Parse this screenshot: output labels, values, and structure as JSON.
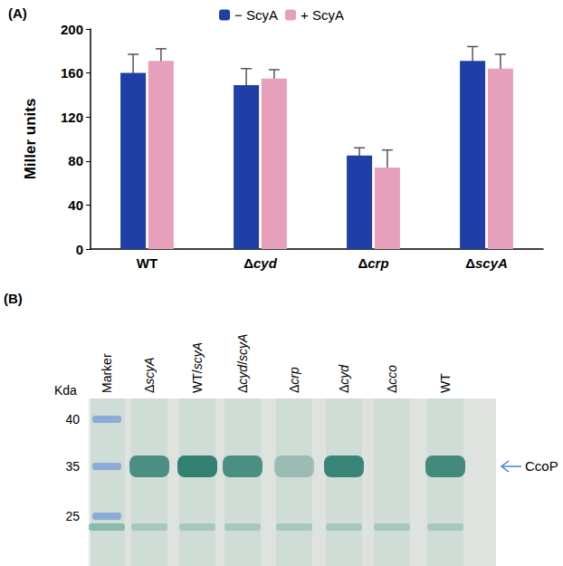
{
  "chart_data": {
    "type": "bar",
    "title": "(A)",
    "categories": [
      "WT",
      "Δcyd",
      "Δcrp",
      "ΔscyA"
    ],
    "series": [
      {
        "name": "− ScyA",
        "color": "#1f3fa6",
        "values": [
          160,
          149,
          85,
          171
        ],
        "errors": [
          17,
          15,
          7,
          13
        ]
      },
      {
        "name": "+ ScyA",
        "color": "#e6a0bb",
        "values": [
          171,
          155,
          74,
          164
        ],
        "errors": [
          11,
          8,
          16,
          13
        ]
      }
    ],
    "y_label": "Miller units",
    "ylim": [
      0,
      200
    ],
    "yticks": [
      0,
      40,
      80,
      120,
      160,
      200
    ],
    "grid": false,
    "legend": "top"
  },
  "gel": {
    "title": "(B)",
    "y_label": "Kda",
    "markers": [
      40,
      35,
      25
    ],
    "lanes": [
      "Marker",
      "ΔscyA",
      "WT/scyA",
      "Δcyd/scyA",
      "Δcrp",
      "Δcyd",
      "Δcco",
      "WT"
    ],
    "band_label": "CcoP",
    "band_intensity": [
      0,
      0.75,
      0.9,
      0.75,
      0.3,
      0.85,
      0,
      0.8
    ]
  }
}
